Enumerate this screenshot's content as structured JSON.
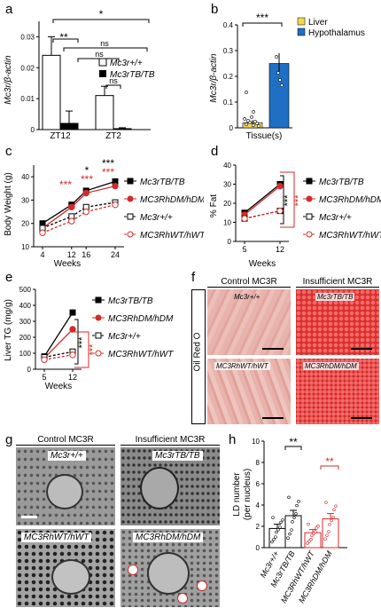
{
  "panels": {
    "a": "a",
    "b": "b",
    "c": "c",
    "d": "d",
    "e": "e",
    "f": "f",
    "g": "g",
    "h": "h"
  },
  "a": {
    "ylabel": "Mc3r/β-actin",
    "legend": [
      "Mc3r+/+",
      "Mc3rTB/TB"
    ],
    "categories": [
      "ZT12",
      "ZT2"
    ],
    "sig": [
      "*",
      "**",
      "ns",
      "ns",
      "ns"
    ]
  },
  "b": {
    "ylabel": "Mc3r/β-actin",
    "xlabel": "Tissue(s)",
    "legend": [
      "Liver",
      "Hypothalamus"
    ],
    "sig": "***",
    "colors": {
      "liver": "#f2d94e",
      "hypothalamus": "#1f6fc4"
    }
  },
  "c": {
    "ylabel": "Body Weight (g)",
    "xlabel": "Weeks",
    "legend": [
      "Mc3rTB/TB",
      "MC3RhDM/hDM",
      "Mc3r+/+",
      "MC3RhWT/hWT"
    ],
    "sig_black": [
      "*",
      "***"
    ],
    "sig_red": [
      "***",
      "***",
      "***"
    ]
  },
  "d": {
    "ylabel": "% Fat",
    "xlabel": "Weeks",
    "legend": [
      "Mc3rTB/TB",
      "MC3RhDM/hDM",
      "Mc3r+/+",
      "MC3RhWT/hWT"
    ],
    "sig": [
      "***",
      "***"
    ]
  },
  "e": {
    "ylabel": "Liver TG (mg/g)",
    "xlabel": "Weeks",
    "legend": [
      "Mc3rTB/TB",
      "MC3RhDM/hDM",
      "Mc3r+/+",
      "MC3RhWT/hWT"
    ],
    "sig": [
      "***",
      "***"
    ]
  },
  "f": {
    "headers": [
      "Control MC3R",
      "Insufficient MC3R"
    ],
    "side": "Oil Red O",
    "labels": [
      "Mc3r+/+",
      "Mc3rTB/TB",
      "MC3RhWT/hWT",
      "MC3RhDM/hDM"
    ]
  },
  "g": {
    "headers": [
      "Control MC3R",
      "Insufficient MC3R"
    ],
    "labels": [
      "Mc3r+/+",
      "Mc3rTB/TB",
      "MC3RhWT/hWT",
      "MC3RhDM/hDM"
    ]
  },
  "h": {
    "ylabel": "LD number",
    "ylabel2": "(per nucleus)",
    "categories": [
      "Mc3r+/+",
      "Mc3rTB/TB",
      "MC3RhWT/hWT",
      "MC3RhDM/hDM"
    ],
    "sig": [
      "**",
      "**"
    ]
  },
  "chart_data": [
    {
      "panel": "a",
      "type": "bar",
      "categories": [
        "ZT12",
        "ZT2"
      ],
      "series": [
        {
          "name": "Mc3r+/+",
          "values": [
            0.024,
            0.011
          ],
          "errors": [
            0.006,
            0.003
          ]
        },
        {
          "name": "Mc3rTB/TB",
          "values": [
            0.002,
            0.0003
          ],
          "errors": [
            0.004,
            0.0003
          ]
        }
      ],
      "ylabel": "Mc3r/β-actin",
      "ylim": [
        0,
        0.035
      ],
      "yticks": [
        0,
        0.01,
        0.02,
        0.03
      ]
    },
    {
      "panel": "b",
      "type": "bar",
      "categories": [
        "Liver",
        "Hypothalamus"
      ],
      "values": [
        0.02,
        0.25
      ],
      "errors": [
        0.01,
        0.04
      ],
      "xlabel": "Tissue(s)",
      "ylabel": "Mc3r/β-actin",
      "ylim": [
        0,
        0.4
      ],
      "yticks": [
        0,
        0.1,
        0.2,
        0.3,
        0.4
      ]
    },
    {
      "panel": "c",
      "type": "line",
      "x": [
        4,
        12,
        16,
        24
      ],
      "series": [
        {
          "name": "Mc3rTB/TB",
          "values": [
            20,
            28,
            34,
            38
          ]
        },
        {
          "name": "MC3RhDM/hDM",
          "values": [
            18,
            27,
            33,
            36
          ]
        },
        {
          "name": "Mc3r+/+",
          "values": [
            18,
            23,
            27,
            29
          ]
        },
        {
          "name": "MC3RhWT/hWT",
          "values": [
            16,
            21,
            25,
            28
          ]
        }
      ],
      "xlabel": "Weeks",
      "ylabel": "Body Weight (g)",
      "ylim": [
        10,
        45
      ],
      "yticks": [
        10,
        20,
        30,
        40
      ]
    },
    {
      "panel": "d",
      "type": "line",
      "x": [
        5,
        12
      ],
      "series": [
        {
          "name": "Mc3rTB/TB",
          "values": [
            15,
            30
          ]
        },
        {
          "name": "MC3RhDM/hDM",
          "values": [
            14,
            29
          ]
        },
        {
          "name": "Mc3r+/+",
          "values": [
            12,
            16
          ]
        },
        {
          "name": "MC3RhWT/hWT",
          "values": [
            12,
            16
          ]
        }
      ],
      "xlabel": "Weeks",
      "ylabel": "% Fat",
      "ylim": [
        0,
        40
      ],
      "yticks": [
        0,
        10,
        20,
        30,
        40
      ]
    },
    {
      "panel": "e",
      "type": "line",
      "x": [
        5,
        12
      ],
      "series": [
        {
          "name": "Mc3rTB/TB",
          "values": [
            80,
            355
          ]
        },
        {
          "name": "MC3RhDM/hDM",
          "values": [
            70,
            250
          ]
        },
        {
          "name": "Mc3r+/+",
          "values": [
            75,
            110
          ]
        },
        {
          "name": "MC3RhWT/hWT",
          "values": [
            60,
            90
          ]
        }
      ],
      "xlabel": "Weeks",
      "ylabel": "Liver TG (mg/g)",
      "ylim": [
        0,
        500
      ],
      "yticks": [
        0,
        100,
        200,
        300,
        400,
        500
      ]
    },
    {
      "panel": "h",
      "type": "bar",
      "categories": [
        "Mc3r+/+",
        "Mc3rTB/TB",
        "MC3RhWT/hWT",
        "MC3RhDM/hDM"
      ],
      "values": [
        1.8,
        3.0,
        1.4,
        2.7
      ],
      "errors": [
        0.4,
        0.5,
        0.3,
        0.5
      ],
      "ylabel": "LD number (per nucleus)",
      "ylim": [
        0,
        10
      ],
      "yticks": [
        0,
        2,
        4,
        6,
        8,
        10
      ]
    }
  ]
}
